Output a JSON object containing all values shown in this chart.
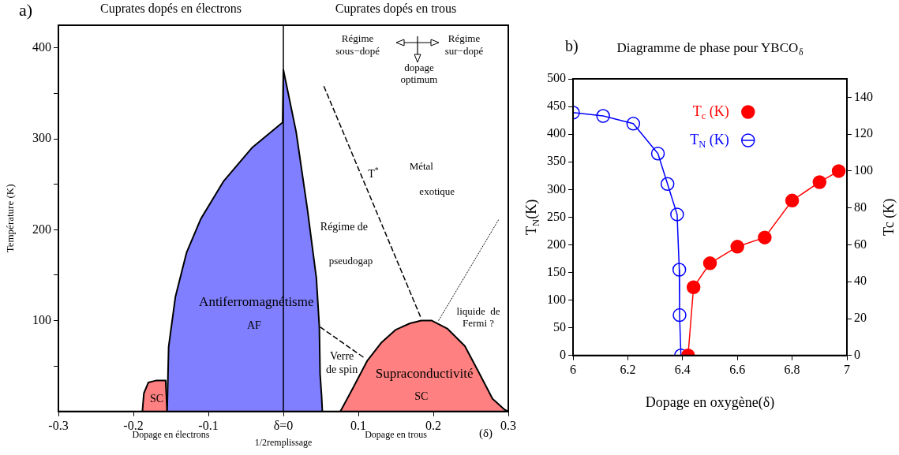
{
  "chart_data": [
    {
      "type": "area",
      "ylabel": "Température (K)",
      "xlim": [
        -0.3,
        0.3
      ],
      "xticks": [
        -0.3,
        -0.2,
        -0.1,
        {
          "value": 0,
          "label": "δ=0"
        },
        0.1,
        0.2,
        0.3
      ],
      "ylim": [
        0,
        425
      ],
      "yticks": [
        {
          "value": 50,
          "label": null
        },
        100,
        {
          "value": 150,
          "label": null
        },
        200,
        {
          "value": 250,
          "label": null
        },
        300,
        {
          "value": 350,
          "label": null
        },
        400
      ],
      "series": [
        {
          "color": "#7f7fff",
          "x": [
            -0.155,
            -0.153,
            -0.144,
            -0.129,
            -0.11,
            -0.08,
            -0.042,
            -0.001,
            0,
            0.017,
            0.032,
            0.044,
            0.048,
            0.049,
            0.051,
            0.052
          ],
          "values": [
            0,
            71,
            126,
            175,
            212,
            253,
            290,
            318,
            376,
            308,
            223,
            147,
            93,
            41,
            17,
            0
          ]
        },
        {
          "color": "#ff8080",
          "x": [
            -0.188,
            -0.186,
            -0.18,
            -0.17,
            -0.157,
            -0.155
          ],
          "values": [
            0,
            20,
            32,
            34,
            34,
            0
          ]
        },
        {
          "color": "#ff8080",
          "x": [
            0.076,
            0.093,
            0.112,
            0.131,
            0.15,
            0.169,
            0.184,
            0.198,
            0.219,
            0.242,
            0.26,
            0.279,
            0.295,
            0.3
          ],
          "values": [
            0,
            26,
            56,
            76,
            90,
            97,
            100,
            100,
            91,
            72,
            44,
            14,
            2,
            0
          ]
        },
        {
          "type": "line",
          "color": "#000000",
          "line_style": "dashed",
          "x": [
            0.054,
            0.184
          ],
          "values": [
            358,
            102
          ]
        },
        {
          "type": "line",
          "color": "#000000",
          "line_style": "dotted",
          "x": [
            0.207,
            0.287
          ],
          "values": [
            100,
            211
          ]
        },
        {
          "type": "line",
          "color": "#000000",
          "line_style": "dashed",
          "x": [
            0.049,
            0.108
          ],
          "values": [
            93,
            59
          ]
        }
      ],
      "ref_lines": [
        {
          "axis": "x",
          "value": 0,
          "color": "#000000"
        }
      ],
      "annotations": [
        "a)",
        "Cuprates dopés en électrons",
        "Cuprates dopés en trous",
        "Dopage en électrons",
        "1/2remplissage",
        "Dopage en trous",
        "(δ)",
        "Antiferromagnétisme",
        "AF",
        "SC",
        "Supraconductivité",
        "SC",
        "Verre\nde spin",
        "Régime de",
        "pseudogap",
        "T$^{*}$",
        "Métal",
        "exotique",
        "liquide  de\nFermi ?",
        "Régime\nsous−dopé",
        "dopage\noptimum",
        "Régime\nsur−dopé"
      ]
    },
    {
      "type": "line",
      "title": "Diagramme de phase pour YBCO$_{δ}$",
      "xlabel": "Dopage en oxygène(δ)",
      "ylabel": "T$_{N}$(K)",
      "y2label": "Tc (K)",
      "xlim": [
        6,
        7
      ],
      "xticks": [
        6,
        6.2,
        6.4,
        6.6,
        6.8,
        7
      ],
      "ylim": [
        0,
        500
      ],
      "yticks": [
        0,
        50,
        100,
        150,
        200,
        250,
        300,
        350,
        400,
        450,
        500
      ],
      "y2lim": [
        0,
        150
      ],
      "y2ticks": [
        0,
        20,
        40,
        60,
        80,
        100,
        120,
        140
      ],
      "legend": "top right",
      "marker": "circle",
      "annotations": [
        "b)"
      ],
      "series": [
        {
          "name": "T$_{c}$ (K)",
          "color": "#ff0000",
          "axis": "y2",
          "x": [
            6.42,
            6.44,
            6.5,
            6.6,
            6.7,
            6.8,
            6.9,
            6.97
          ],
          "values": [
            0,
            37,
            50,
            59,
            64,
            84,
            94,
            100
          ]
        },
        {
          "name": "T$_{N}$ (K)",
          "color": "#0000ff",
          "x": [
            6.0,
            6.11,
            6.22,
            6.31,
            6.345,
            6.38,
            6.388,
            6.389,
            6.394
          ],
          "values": [
            439,
            433,
            419,
            365,
            310,
            255,
            155,
            73,
            0
          ]
        }
      ]
    }
  ]
}
